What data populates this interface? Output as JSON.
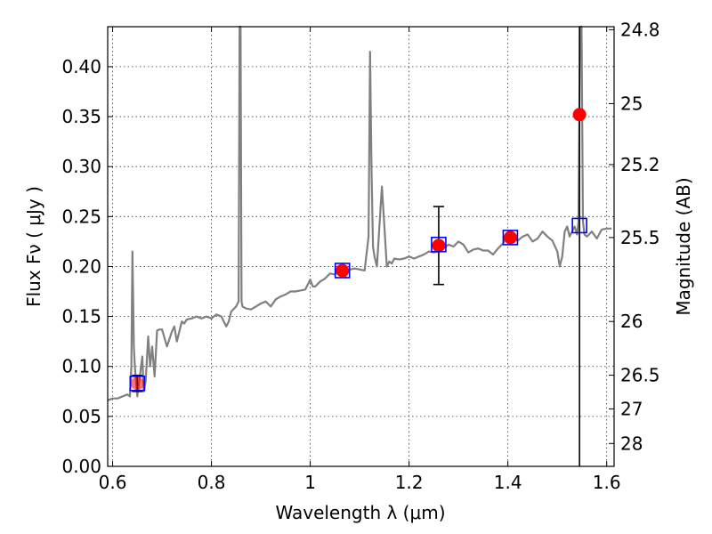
{
  "chart_data": {
    "type": "line",
    "xlabel": "Wavelength  λ (μm)",
    "ylabel": "Flux  Fν  ( μJy )",
    "right_ylabel": "Magnitude (AB)",
    "xlim": [
      0.59,
      1.615
    ],
    "ylim": [
      0.0,
      0.44
    ],
    "x_ticks": [
      0.6,
      0.8,
      1.0,
      1.2,
      1.4,
      1.6
    ],
    "x_tick_labels": [
      "0.6",
      "0.8",
      "1",
      "1.2",
      "1.4",
      "1.6"
    ],
    "y_ticks": [
      0.0,
      0.05,
      0.1,
      0.15,
      0.2,
      0.25,
      0.3,
      0.35,
      0.4
    ],
    "y_tick_labels": [
      "0.00",
      "0.05",
      "0.10",
      "0.15",
      "0.20",
      "0.25",
      "0.30",
      "0.35",
      "0.40"
    ],
    "right_ticks": [
      {
        "mag": "24.8",
        "flux": 0.437
      },
      {
        "mag": "25",
        "flux": 0.363
      },
      {
        "mag": "25.2",
        "flux": 0.302
      },
      {
        "mag": "25.5",
        "flux": 0.229
      },
      {
        "mag": "26",
        "flux": 0.145
      },
      {
        "mag": "26.5",
        "flux": 0.0912
      },
      {
        "mag": "27",
        "flux": 0.0575
      },
      {
        "mag": "28",
        "flux": 0.0229
      }
    ],
    "grid": true,
    "colors": {
      "model": "#808080",
      "observed": "#ff0000",
      "model_band": "#0000ff",
      "errorbar": "#000000",
      "overlap": "#a020a0"
    },
    "series": [
      {
        "kind": "line",
        "x": [
          0.59,
          0.6,
          0.61,
          0.62,
          0.63,
          0.635,
          0.638,
          0.64,
          0.643,
          0.645,
          0.65,
          0.655,
          0.66,
          0.663,
          0.667,
          0.672,
          0.676,
          0.68,
          0.685,
          0.69,
          0.695,
          0.7,
          0.71,
          0.72,
          0.725,
          0.73,
          0.74,
          0.745,
          0.75,
          0.76,
          0.77,
          0.78,
          0.79,
          0.8,
          0.81,
          0.82,
          0.83,
          0.835,
          0.84,
          0.85,
          0.855,
          0.857,
          0.859,
          0.861,
          0.863,
          0.87,
          0.88,
          0.89,
          0.9,
          0.91,
          0.92,
          0.93,
          0.94,
          0.95,
          0.96,
          0.97,
          0.98,
          0.99,
          1.0,
          1.005,
          1.01,
          1.02,
          1.03,
          1.04,
          1.05,
          1.06,
          1.07,
          1.08,
          1.09,
          1.1,
          1.11,
          1.118,
          1.121,
          1.124,
          1.127,
          1.13,
          1.135,
          1.14,
          1.145,
          1.15,
          1.155,
          1.16,
          1.165,
          1.17,
          1.18,
          1.19,
          1.2,
          1.21,
          1.22,
          1.23,
          1.24,
          1.25,
          1.26,
          1.27,
          1.28,
          1.29,
          1.3,
          1.31,
          1.32,
          1.33,
          1.34,
          1.35,
          1.36,
          1.37,
          1.38,
          1.39,
          1.4,
          1.41,
          1.42,
          1.43,
          1.44,
          1.45,
          1.46,
          1.47,
          1.48,
          1.49,
          1.5,
          1.505,
          1.51,
          1.515,
          1.52,
          1.525,
          1.53,
          1.535,
          1.54,
          1.543,
          1.546,
          1.549,
          1.552,
          1.555,
          1.56,
          1.57,
          1.58,
          1.59,
          1.6,
          1.61
        ],
        "y": [
          0.066,
          0.068,
          0.068,
          0.07,
          0.072,
          0.07,
          0.1,
          0.215,
          0.12,
          0.1,
          0.07,
          0.09,
          0.11,
          0.075,
          0.085,
          0.13,
          0.1,
          0.12,
          0.09,
          0.136,
          0.137,
          0.137,
          0.12,
          0.135,
          0.14,
          0.125,
          0.145,
          0.143,
          0.147,
          0.148,
          0.15,
          0.148,
          0.15,
          0.148,
          0.152,
          0.15,
          0.14,
          0.145,
          0.155,
          0.16,
          0.165,
          0.44,
          0.44,
          0.165,
          0.16,
          0.158,
          0.157,
          0.16,
          0.163,
          0.165,
          0.16,
          0.167,
          0.17,
          0.172,
          0.175,
          0.175,
          0.176,
          0.177,
          0.187,
          0.18,
          0.18,
          0.185,
          0.188,
          0.193,
          0.192,
          0.196,
          0.189,
          0.197,
          0.198,
          0.197,
          0.196,
          0.23,
          0.415,
          0.3,
          0.22,
          0.21,
          0.2,
          0.24,
          0.28,
          0.24,
          0.2,
          0.205,
          0.203,
          0.208,
          0.207,
          0.208,
          0.21,
          0.208,
          0.21,
          0.212,
          0.215,
          0.214,
          0.215,
          0.218,
          0.222,
          0.22,
          0.225,
          0.222,
          0.214,
          0.217,
          0.218,
          0.216,
          0.216,
          0.212,
          0.218,
          0.223,
          0.232,
          0.228,
          0.226,
          0.23,
          0.232,
          0.225,
          0.228,
          0.235,
          0.23,
          0.226,
          0.215,
          0.2,
          0.21,
          0.235,
          0.24,
          0.23,
          0.235,
          0.24,
          0.232,
          0.245,
          0.44,
          0.44,
          0.245,
          0.232,
          0.23,
          0.235,
          0.228,
          0.237,
          0.238,
          0.238
        ]
      },
      {
        "kind": "model_band",
        "marker": "open-square",
        "x": [
          0.65,
          1.065,
          1.26,
          1.405,
          1.545
        ],
        "y": [
          0.083,
          0.196,
          0.222,
          0.229,
          0.241
        ]
      },
      {
        "kind": "observed",
        "marker": "filled-circle",
        "x": [
          0.65,
          1.065,
          1.26,
          1.405,
          1.545
        ],
        "y": [
          0.083,
          0.196,
          0.221,
          0.229,
          0.352
        ],
        "err_low": [
          0.075,
          0.196,
          0.182,
          0.229,
          0.0
        ],
        "err_high": [
          0.091,
          0.196,
          0.26,
          0.229,
          0.44
        ]
      }
    ]
  }
}
